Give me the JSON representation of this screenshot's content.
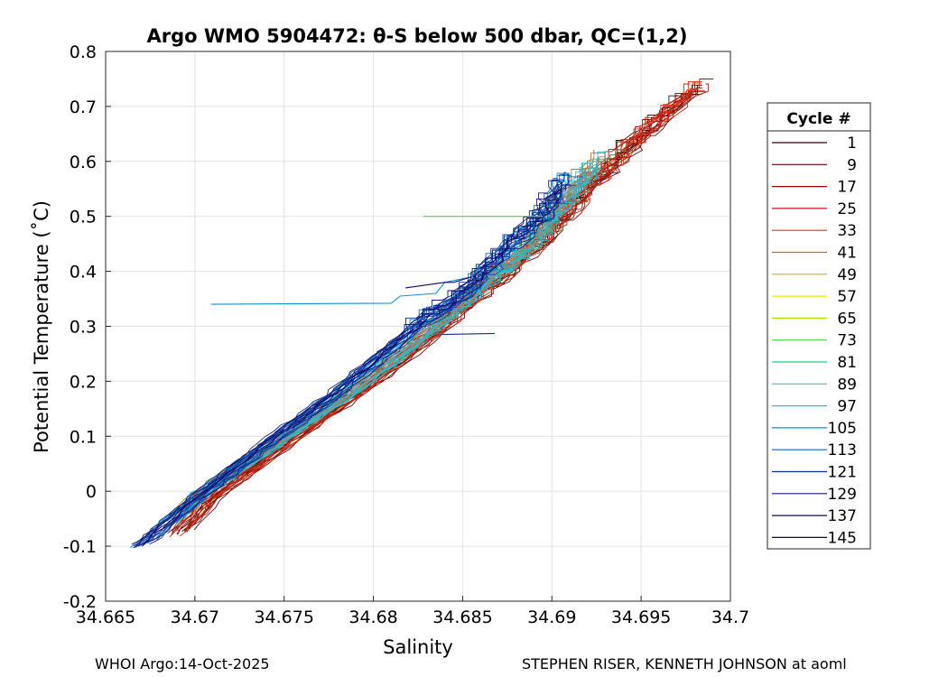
{
  "chart_data": {
    "type": "line",
    "title": "Argo WMO 5904472: θ-S below 500 dbar,  QC=(1,2)",
    "xlabel": "Salinity",
    "ylabel": "Potential Temperature (˚C)",
    "xlim": [
      34.665,
      34.7
    ],
    "ylim": [
      -0.2,
      0.8
    ],
    "xticks": [
      "34.665",
      "34.67",
      "34.675",
      "34.68",
      "34.685",
      "34.69",
      "34.695",
      "34.7"
    ],
    "yticks": [
      "-0.2",
      "-0.1",
      "0",
      "0.1",
      "0.2",
      "0.3",
      "0.4",
      "0.5",
      "0.6",
      "0.7",
      "0.8"
    ],
    "grid": true,
    "legend": {
      "title": "Cycle #",
      "placement": "right-outside",
      "entries": [
        {
          "name": "1",
          "color": "#3d0000"
        },
        {
          "name": "9",
          "color": "#740000"
        },
        {
          "name": "17",
          "color": "#a80000"
        },
        {
          "name": "25",
          "color": "#d81010"
        },
        {
          "name": "33",
          "color": "#e83010"
        },
        {
          "name": "41",
          "color": "#e86010"
        },
        {
          "name": "49",
          "color": "#e8a010"
        },
        {
          "name": "57",
          "color": "#f0e800"
        },
        {
          "name": "65",
          "color": "#a8e800"
        },
        {
          "name": "73",
          "color": "#40e040"
        },
        {
          "name": "81",
          "color": "#10d880"
        },
        {
          "name": "89",
          "color": "#10d8b8"
        },
        {
          "name": "97",
          "color": "#10c8e8"
        },
        {
          "name": "105",
          "color": "#1090d8"
        },
        {
          "name": "113",
          "color": "#1060c0"
        },
        {
          "name": "121",
          "color": "#1030a0"
        },
        {
          "name": "129",
          "color": "#101880"
        },
        {
          "name": "137",
          "color": "#100c60"
        },
        {
          "name": "145",
          "color": "#10006e"
        }
      ]
    },
    "series_groups": [
      {
        "cycles": "1-40",
        "color_range": [
          "#3d0000",
          "#e83010"
        ],
        "path": [
          [
            34.6689,
            -0.085
          ],
          [
            34.671,
            -0.01
          ],
          [
            34.675,
            0.085
          ],
          [
            34.68,
            0.2
          ],
          [
            34.6835,
            0.29
          ],
          [
            34.686,
            0.36
          ],
          [
            34.689,
            0.44
          ],
          [
            34.6915,
            0.53
          ],
          [
            34.6945,
            0.63
          ],
          [
            34.6988,
            0.75
          ]
        ]
      },
      {
        "cycles": "41-104",
        "color_range": [
          "#e86010",
          "#10c8e8"
        ],
        "path": [
          [
            34.6685,
            -0.06
          ],
          [
            34.6705,
            0.0
          ],
          [
            34.675,
            0.1
          ],
          [
            34.6795,
            0.2
          ],
          [
            34.683,
            0.29
          ],
          [
            34.6855,
            0.36
          ],
          [
            34.6885,
            0.44
          ],
          [
            34.6905,
            0.52
          ],
          [
            34.693,
            0.62
          ]
        ]
      },
      {
        "cycles": "105-145",
        "color_range": [
          "#1090d8",
          "#10006e"
        ],
        "path": [
          [
            34.6668,
            -0.105
          ],
          [
            34.6695,
            -0.03
          ],
          [
            34.673,
            0.06
          ],
          [
            34.678,
            0.18
          ],
          [
            34.6825,
            0.3
          ],
          [
            34.6855,
            0.37
          ],
          [
            34.6875,
            0.44
          ],
          [
            34.6895,
            0.5
          ],
          [
            34.691,
            0.58
          ]
        ]
      }
    ],
    "annotations": [
      {
        "label": "cycle-73 offset segment",
        "color": "#40e040",
        "path": [
          [
            34.6828,
            0.5
          ],
          [
            34.6895,
            0.5
          ]
        ]
      },
      {
        "label": "cycle-105 intrusion",
        "color": "#1090d8",
        "path": [
          [
            34.6709,
            0.34
          ],
          [
            34.681,
            0.342
          ],
          [
            34.6815,
            0.355
          ],
          [
            34.6835,
            0.36
          ],
          [
            34.684,
            0.38
          ],
          [
            34.6855,
            0.39
          ],
          [
            34.686,
            0.41
          ]
        ]
      },
      {
        "label": "cycle-137 intrusion",
        "color": "#100c60",
        "path": [
          [
            34.6818,
            0.37
          ],
          [
            34.684,
            0.38
          ],
          [
            34.6845,
            0.38
          ],
          [
            34.6855,
            0.39
          ]
        ]
      },
      {
        "label": "low-salinity tail",
        "color": "#1030a0",
        "path": [
          [
            34.6838,
            0.285
          ],
          [
            34.6868,
            0.287
          ]
        ]
      }
    ]
  },
  "footer": {
    "left": "WHOI Argo:14-Oct-2025",
    "right": "STEPHEN RISER, KENNETH JOHNSON at aoml"
  }
}
